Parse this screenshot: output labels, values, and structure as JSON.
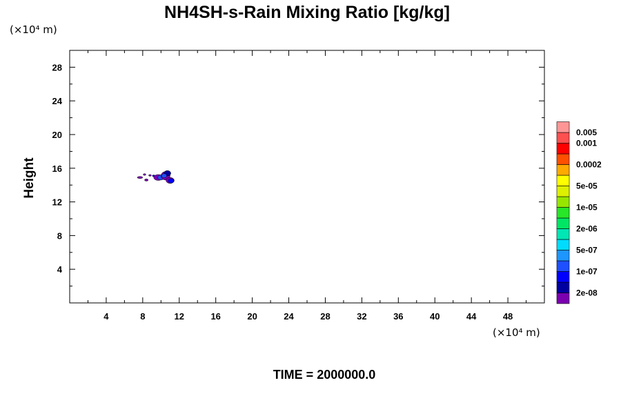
{
  "chart_data": {
    "type": "contour",
    "title": "NH4SH-s-Rain Mixing Ratio [kg/kg]",
    "x_unit": "(×10⁴ m)",
    "y_unit": "(×10⁴ m)",
    "xlabel": "",
    "ylabel": "Height",
    "xlim": [
      0,
      52
    ],
    "ylim": [
      0,
      30
    ],
    "x_ticks": [
      4,
      8,
      12,
      16,
      20,
      24,
      28,
      32,
      36,
      40,
      44,
      48
    ],
    "y_ticks": [
      4,
      8,
      12,
      16,
      20,
      24,
      28
    ],
    "x_tick_labels": [
      "4",
      "8",
      "12",
      "16",
      "20",
      "24",
      "28",
      "32",
      "36",
      "40",
      "44",
      "48"
    ],
    "y_tick_labels": [
      "4",
      "8",
      "12",
      "16",
      "20",
      "24",
      "28"
    ],
    "grid": false,
    "time_label": "TIME = 2000000.0",
    "colorbar": {
      "placement": "right",
      "colors_bottom_to_top": [
        "#7a00b0",
        "#0000a0",
        "#0000ff",
        "#1e50ff",
        "#1e96ff",
        "#00dcff",
        "#00e6b4",
        "#00e664",
        "#28e628",
        "#96e600",
        "#dcf000",
        "#ffff00",
        "#ffaa00",
        "#ff5000",
        "#ff0000",
        "#ff5050",
        "#ff9696"
      ],
      "labels": [
        {
          "text": "2e-08",
          "boundary": 1
        },
        {
          "text": "1e-07",
          "boundary": 3
        },
        {
          "text": "5e-07",
          "boundary": 5
        },
        {
          "text": "2e-06",
          "boundary": 7
        },
        {
          "text": "1e-05",
          "boundary": 9
        },
        {
          "text": "5e-05",
          "boundary": 11
        },
        {
          "text": "0.0002",
          "boundary": 13
        },
        {
          "text": "0.001",
          "boundary": 15
        },
        {
          "text": "0.005",
          "boundary": 16
        }
      ]
    },
    "regions": [
      {
        "color": "#7a00b0",
        "cx": 7.7,
        "cy": 14.9,
        "rx": 0.3,
        "ry": 0.12
      },
      {
        "color": "#7a00b0",
        "cx": 8.2,
        "cy": 15.25,
        "rx": 0.15,
        "ry": 0.1
      },
      {
        "color": "#7a00b0",
        "cx": 8.4,
        "cy": 14.6,
        "rx": 0.2,
        "ry": 0.13
      },
      {
        "color": "#7a00b0",
        "cx": 8.8,
        "cy": 15.15,
        "rx": 0.15,
        "ry": 0.1
      },
      {
        "color": "#0000ff",
        "cx": 9.2,
        "cy": 15.1,
        "rx": 0.15,
        "ry": 0.1
      },
      {
        "color": "#7a00b0",
        "cx": 9.7,
        "cy": 14.9,
        "rx": 0.5,
        "ry": 0.35
      },
      {
        "color": "#1e50ff",
        "cx": 10.0,
        "cy": 14.9,
        "rx": 0.35,
        "ry": 0.3
      },
      {
        "color": "#7a00b0",
        "cx": 10.5,
        "cy": 15.1,
        "rx": 0.5,
        "ry": 0.5
      },
      {
        "color": "#0000a0",
        "cx": 10.7,
        "cy": 15.4,
        "rx": 0.38,
        "ry": 0.32
      },
      {
        "color": "#7a00b0",
        "cx": 11.0,
        "cy": 14.55,
        "rx": 0.45,
        "ry": 0.35
      },
      {
        "color": "#0000ff",
        "cx": 11.1,
        "cy": 14.5,
        "rx": 0.32,
        "ry": 0.27
      },
      {
        "color": "#1e50ff",
        "cx": 10.35,
        "cy": 15.1,
        "rx": 0.28,
        "ry": 0.25
      }
    ]
  }
}
